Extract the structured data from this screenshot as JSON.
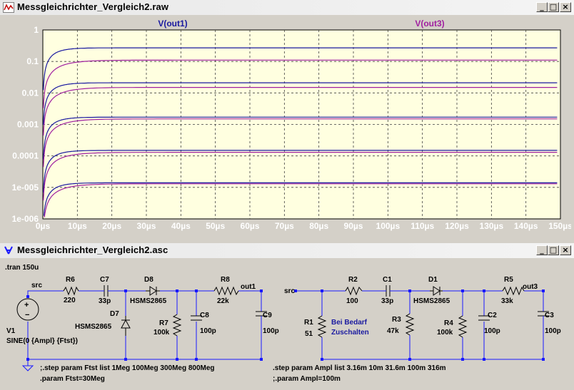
{
  "plot_window": {
    "title": "Messgleichrichter_Vergleich2.raw",
    "minimize_glyph": "_",
    "maximize_glyph": "□",
    "close_glyph": "×"
  },
  "schematic_window": {
    "title": "Messgleichrichter_Vergleich2.asc",
    "minimize_glyph": "_",
    "maximize_glyph": "□",
    "close_glyph": "×"
  },
  "colors": {
    "out1": "#1a1aa0",
    "out3": "#a020a0",
    "plot_bg": "#ffffe0",
    "grid": "#404040",
    "schematic_wire": "#1a1aff",
    "schematic_node": "#1a1aff"
  },
  "chart_data": {
    "type": "line",
    "title": "",
    "xlabel": "",
    "ylabel": "",
    "yscale": "log",
    "xlim": [
      0,
      150
    ],
    "ylim": [
      1e-06,
      1
    ],
    "x_ticks": [
      "0µs",
      "10µs",
      "20µs",
      "30µs",
      "40µs",
      "50µs",
      "60µs",
      "70µs",
      "80µs",
      "90µs",
      "100µs",
      "110µs",
      "120µs",
      "130µs",
      "140µs",
      "150µs"
    ],
    "y_ticks": [
      "1",
      "0.1",
      "0.01",
      "0.001",
      "0.0001",
      "1e-005",
      "1e-006"
    ],
    "grid": true,
    "legend": [
      "V(out1)",
      "V(out3)"
    ],
    "series": [
      {
        "name": "V(out1)",
        "group": 1,
        "plateaus": [
          0.27,
          0.021,
          0.0017,
          0.00015,
          1.4e-05
        ]
      },
      {
        "name": "V(out3)",
        "group": 3,
        "plateaus": [
          0.11,
          0.015,
          0.0015,
          0.00013,
          1.3e-05
        ]
      }
    ]
  },
  "schematic": {
    "directive_tran": ".tran 150u",
    "left": {
      "src_label": "src",
      "R6": "R6",
      "R6_val": "220",
      "C7": "C7",
      "C7_val": "33p",
      "D8": "D8",
      "D8_val": "HSMS2865",
      "D7": "D7",
      "D7_val": "HSMS2865",
      "R8": "R8",
      "R8_val": "22k",
      "out1": "out1",
      "R7": "R7",
      "R7_val": "100k",
      "C8": "C8",
      "C8_val": "100p",
      "C9": "C9",
      "C9_val": "100p",
      "V1": "V1",
      "V1_val": "SINE(0 {Ampl} {Ftst})",
      "step1": ";.step param Ftst list 1Meg 100Meg 300Meg 800Meg",
      "param1": ".param Ftst=30Meg"
    },
    "right": {
      "src_label": "src",
      "R2": "R2",
      "R2_val": "100",
      "C1": "C1",
      "C1_val": "33p",
      "D1": "D1",
      "D1_val": "HSMS2865",
      "R5": "R5",
      "R5_val": "33k",
      "out3": "out3",
      "R1": "R1",
      "R1_val": "51",
      "note1": "Bei Bedarf",
      "note2": "Zuschalten",
      "R3": "R3",
      "R3_val": "47k",
      "R4": "R4",
      "R4_val": "100k",
      "C2": "C2",
      "C2_val": "100p",
      "C3": "C3",
      "C3_val": "100p",
      "step2": ".step param Ampl list 3.16m 10m 31.6m 100m 316m",
      "param2": ";.param Ampl=100m"
    }
  }
}
